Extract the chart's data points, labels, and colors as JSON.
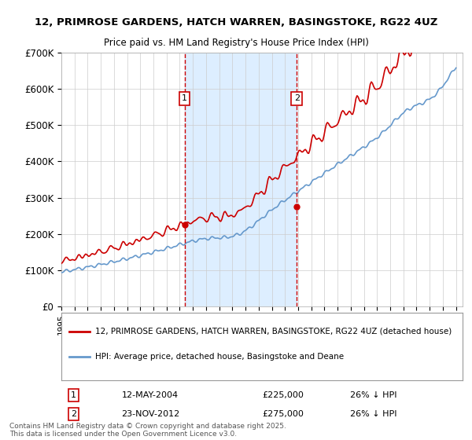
{
  "title_line1": "12, PRIMROSE GARDENS, HATCH WARREN, BASINGSTOKE, RG22 4UZ",
  "title_line2": "Price paid vs. HM Land Registry's House Price Index (HPI)",
  "ylabel": "",
  "xlabel": "",
  "ylim": [
    0,
    700000
  ],
  "yticks": [
    0,
    100000,
    200000,
    300000,
    400000,
    500000,
    600000,
    700000
  ],
  "ytick_labels": [
    "£0",
    "£100K",
    "£200K",
    "£300K",
    "£400K",
    "£500K",
    "£600K",
    "£700K"
  ],
  "sale1_date": "12-MAY-2004",
  "sale1_price": 225000,
  "sale1_pct": "26% ↓ HPI",
  "sale1_x": 2004.36,
  "sale2_date": "23-NOV-2012",
  "sale2_price": 275000,
  "sale2_pct": "26% ↓ HPI",
  "sale2_x": 2012.9,
  "legend_line1": "12, PRIMROSE GARDENS, HATCH WARREN, BASINGSTOKE, RG22 4UZ (detached house)",
  "legend_line2": "HPI: Average price, detached house, Basingstoke and Deane",
  "footer": "Contains HM Land Registry data © Crown copyright and database right 2025.\nThis data is licensed under the Open Government Licence v3.0.",
  "line_color_property": "#cc0000",
  "line_color_hpi": "#6699cc",
  "shade_color": "#ddeeff",
  "vline_color": "#cc0000",
  "marker_box_color": "#cc0000",
  "background_color": "#ffffff",
  "grid_color": "#cccccc"
}
